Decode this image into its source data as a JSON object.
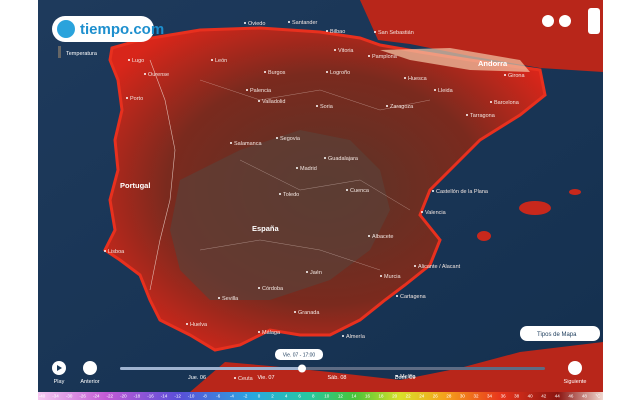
{
  "header": {
    "logo": "tiempo.com",
    "layer": "Temperatura"
  },
  "map": {
    "countries": [
      "Portugal",
      "España",
      "Andorra"
    ],
    "cities": [
      "Oviedo",
      "Santander",
      "Bilbao",
      "San Sebastián",
      "Lugo",
      "Ourense",
      "León",
      "Burgos",
      "Vitoria",
      "Pamplona",
      "Logroño",
      "Huesca",
      "Lleida",
      "Girona",
      "Barcelona",
      "Tarragona",
      "Zaragoza",
      "Palencia",
      "Valladolid",
      "Soria",
      "Porto",
      "Salamanca",
      "Segovia",
      "Guadalajara",
      "Madrid",
      "Toledo",
      "Cuenca",
      "Castellón de la Plana",
      "Valencia",
      "Albacete",
      "Alicante / Alacant",
      "Murcia",
      "Cartagena",
      "Córdoba",
      "Jaén",
      "Sevilla",
      "Granada",
      "Almería",
      "Málaga",
      "Huelva",
      "Lisboa",
      "Ceuta",
      "Melilla"
    ]
  },
  "controls": {
    "play": "Play",
    "previous": "Anterior",
    "next": "Siguiente",
    "map_types": "Tipos de Mapa",
    "current_time": "Vie. 07 - 17:00",
    "days": [
      "Jue. 06",
      "Vie. 07",
      "Sáb. 08",
      "Dom. 09"
    ]
  },
  "scale": {
    "labels": [
      "-40",
      "-34",
      "-30",
      "-26",
      "-24",
      "-22",
      "-20",
      "-18",
      "-16",
      "-14",
      "-12",
      "-10",
      "-8",
      "-6",
      "-4",
      "-2",
      "0",
      "2",
      "4",
      "6",
      "8",
      "10",
      "12",
      "14",
      "16",
      "18",
      "20",
      "22",
      "24",
      "26",
      "28",
      "30",
      "32",
      "34",
      "36",
      "38",
      "40",
      "42",
      "44",
      "46",
      "48",
      "°C"
    ]
  }
}
